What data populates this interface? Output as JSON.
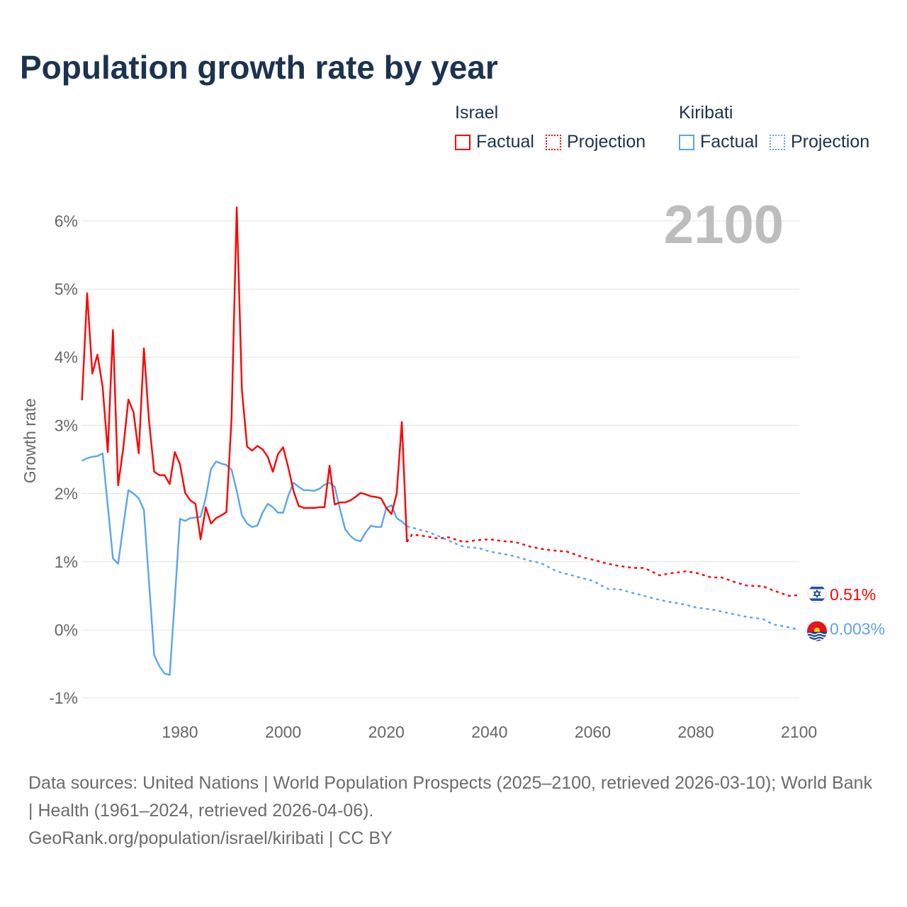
{
  "chart_data": {
    "type": "line",
    "title": "Population growth rate by year",
    "ylabel": "Growth rate",
    "xlabel": "",
    "xlim": [
      1961,
      2100
    ],
    "ylim": [
      -1.2,
      6.6
    ],
    "x_ticks": [
      1980,
      2000,
      2020,
      2040,
      2060,
      2080,
      2100
    ],
    "y_ticks": [
      -1,
      0,
      1,
      2,
      3,
      4,
      5,
      6
    ],
    "y_tick_labels": [
      "-1%",
      "0%",
      "1%",
      "2%",
      "3%",
      "4%",
      "5%",
      "6%"
    ],
    "grid": true,
    "current_year_label": "2100",
    "legend": {
      "placement": "top-right",
      "groups": [
        {
          "name": "Israel",
          "items": [
            "Factual",
            "Projection"
          ]
        },
        {
          "name": "Kiribati",
          "items": [
            "Factual",
            "Projection"
          ]
        }
      ]
    },
    "series": [
      {
        "name": "Israel",
        "color": "#ff0000",
        "end_label": "0.51%",
        "factual": {
          "x": [
            1961,
            1962,
            1963,
            1964,
            1965,
            1966,
            1967,
            1968,
            1969,
            1970,
            1971,
            1972,
            1973,
            1974,
            1975,
            1976,
            1977,
            1978,
            1979,
            1980,
            1981,
            1982,
            1983,
            1984,
            1985,
            1986,
            1987,
            1988,
            1989,
            1990,
            1991,
            1992,
            1993,
            1994,
            1995,
            1996,
            1997,
            1998,
            1999,
            2000,
            2001,
            2002,
            2003,
            2004,
            2005,
            2006,
            2007,
            2008,
            2009,
            2010,
            2011,
            2012,
            2013,
            2014,
            2015,
            2016,
            2017,
            2018,
            2019,
            2020,
            2021,
            2022,
            2023,
            2024
          ],
          "y": [
            3.37,
            4.94,
            3.76,
            4.04,
            3.57,
            2.61,
            4.4,
            2.12,
            2.66,
            3.38,
            3.19,
            2.59,
            4.13,
            3.07,
            2.32,
            2.27,
            2.27,
            2.14,
            2.61,
            2.43,
            2.01,
            1.9,
            1.85,
            1.33,
            1.8,
            1.56,
            1.64,
            1.68,
            1.73,
            3.11,
            6.2,
            3.52,
            2.69,
            2.63,
            2.7,
            2.65,
            2.54,
            2.32,
            2.58,
            2.68,
            2.38,
            2.04,
            1.82,
            1.79,
            1.79,
            1.79,
            1.8,
            1.8,
            2.41,
            1.84,
            1.87,
            1.87,
            1.9,
            1.95,
            2.01,
            1.99,
            1.96,
            1.95,
            1.93,
            1.79,
            1.7,
            2.0,
            3.05,
            1.29
          ]
        },
        "projection": {
          "x": [
            2025,
            2028,
            2030,
            2032,
            2035,
            2038,
            2040,
            2043,
            2045,
            2048,
            2050,
            2053,
            2055,
            2058,
            2060,
            2063,
            2065,
            2068,
            2070,
            2073,
            2075,
            2078,
            2080,
            2083,
            2085,
            2088,
            2090,
            2093,
            2095,
            2098,
            2100
          ],
          "y": [
            1.4,
            1.37,
            1.34,
            1.36,
            1.29,
            1.32,
            1.33,
            1.3,
            1.29,
            1.22,
            1.19,
            1.16,
            1.15,
            1.07,
            1.03,
            0.97,
            0.94,
            0.91,
            0.91,
            0.8,
            0.83,
            0.86,
            0.84,
            0.77,
            0.77,
            0.69,
            0.65,
            0.64,
            0.58,
            0.5,
            0.51
          ]
        }
      },
      {
        "name": "Kiribati",
        "color": "#5aa5ec",
        "end_label": "0.003%",
        "factual": {
          "x": [
            1961,
            1962,
            1963,
            1964,
            1965,
            1966,
            1967,
            1968,
            1969,
            1970,
            1971,
            1972,
            1973,
            1974,
            1975,
            1976,
            1977,
            1978,
            1979,
            1980,
            1981,
            1982,
            1983,
            1984,
            1985,
            1986,
            1987,
            1988,
            1989,
            1990,
            1991,
            1992,
            1993,
            1994,
            1995,
            1996,
            1997,
            1998,
            1999,
            2000,
            2001,
            2002,
            2003,
            2004,
            2005,
            2006,
            2007,
            2008,
            2009,
            2010,
            2011,
            2012,
            2013,
            2014,
            2015,
            2016,
            2017,
            2018,
            2019,
            2020,
            2021,
            2022,
            2023,
            2024
          ],
          "y": [
            2.48,
            2.52,
            2.54,
            2.55,
            2.59,
            1.82,
            1.05,
            0.97,
            1.52,
            2.05,
            2.0,
            1.93,
            1.76,
            0.7,
            -0.37,
            -0.53,
            -0.64,
            -0.66,
            0.45,
            1.63,
            1.6,
            1.64,
            1.65,
            1.66,
            1.94,
            2.36,
            2.47,
            2.44,
            2.42,
            2.35,
            2.04,
            1.68,
            1.56,
            1.51,
            1.53,
            1.72,
            1.85,
            1.8,
            1.72,
            1.72,
            1.97,
            2.16,
            2.1,
            2.05,
            2.05,
            2.04,
            2.07,
            2.13,
            2.16,
            2.1,
            1.78,
            1.48,
            1.38,
            1.32,
            1.3,
            1.43,
            1.53,
            1.51,
            1.51,
            1.79,
            1.83,
            1.64,
            1.59,
            1.52
          ]
        },
        "projection": {
          "x": [
            2025,
            2028,
            2030,
            2033,
            2035,
            2038,
            2040,
            2043,
            2045,
            2048,
            2050,
            2053,
            2055,
            2058,
            2060,
            2063,
            2065,
            2068,
            2070,
            2073,
            2075,
            2078,
            2080,
            2083,
            2085,
            2088,
            2090,
            2093,
            2095,
            2098,
            2100
          ],
          "y": [
            1.5,
            1.44,
            1.38,
            1.28,
            1.22,
            1.2,
            1.15,
            1.11,
            1.08,
            1.01,
            0.98,
            0.86,
            0.82,
            0.76,
            0.72,
            0.6,
            0.6,
            0.54,
            0.5,
            0.44,
            0.41,
            0.37,
            0.33,
            0.3,
            0.27,
            0.22,
            0.19,
            0.16,
            0.08,
            0.04,
            0.003
          ]
        }
      }
    ]
  },
  "footer": {
    "sources": "Data sources: United Nations | World Population Prospects (2025–2100, retrieved 2026-03-10); World Bank | Health (1961–2024, retrieved 2026-04-06).",
    "credit": "GeoRank.org/population/israel/kiribati | CC BY"
  }
}
